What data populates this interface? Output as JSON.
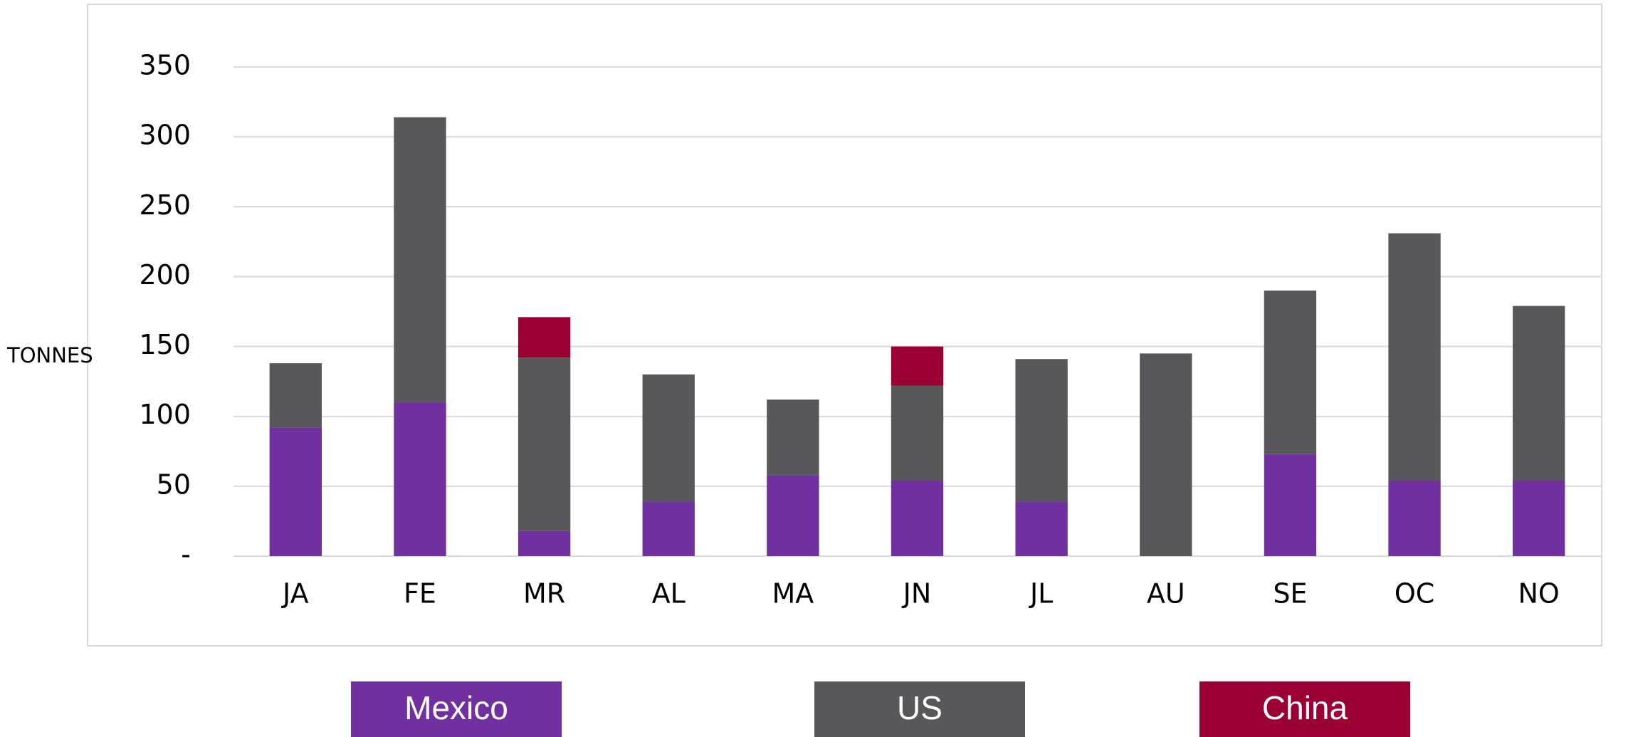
{
  "chart_data": {
    "type": "stacked_bar",
    "y_label": "TONNES",
    "categories": [
      "JA",
      "FE",
      "MR",
      "AL",
      "MA",
      "JN",
      "JL",
      "AU",
      "SE",
      "OC",
      "NO"
    ],
    "series": [
      {
        "name": "Mexico",
        "color": "#7030a0",
        "values": [
          92,
          110,
          18,
          39,
          58,
          54,
          39,
          0,
          73,
          54,
          54
        ]
      },
      {
        "name": "US",
        "color": "#58585a",
        "values": [
          46,
          204,
          124,
          91,
          54,
          68,
          102,
          145,
          117,
          177,
          125
        ]
      },
      {
        "name": "China",
        "color": "#9b0034",
        "values": [
          0,
          0,
          29,
          0,
          0,
          28,
          0,
          0,
          0,
          0,
          0
        ]
      }
    ],
    "ylim": [
      0,
      350
    ],
    "yticks": [
      {
        "value": 0,
        "label": "-"
      },
      50,
      100,
      150,
      200,
      250,
      300,
      350
    ],
    "grid": true,
    "legend": "bottom"
  }
}
